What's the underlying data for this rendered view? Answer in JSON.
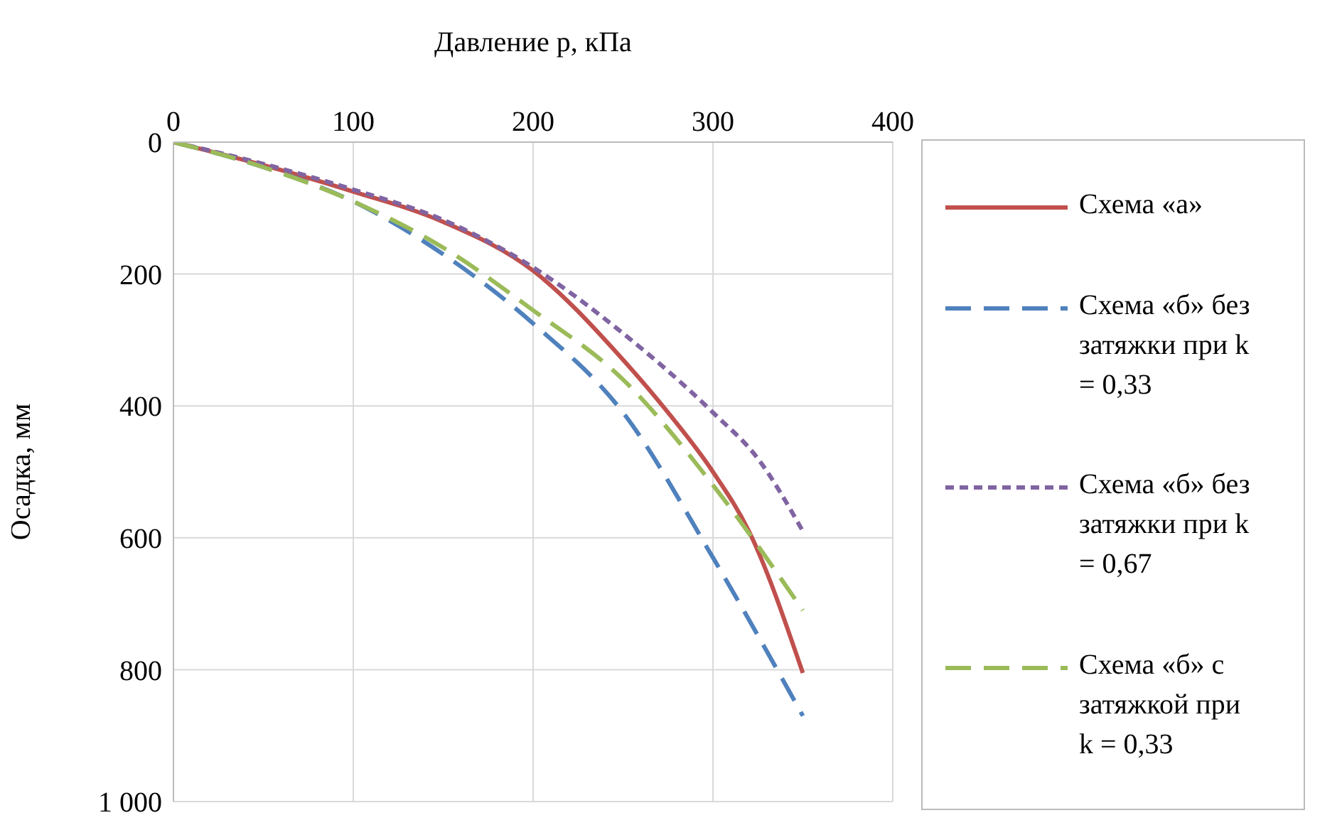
{
  "chart_data": {
    "type": "line",
    "xlabel": "Давление p, кПа",
    "ylabel": "Осадка, мм",
    "xlim": [
      0,
      400
    ],
    "xticks": [
      0,
      100,
      200,
      300,
      400
    ],
    "ylim": [
      1000,
      0
    ],
    "yticks": [
      0,
      200,
      400,
      600,
      800,
      {
        "value": 1000,
        "label": "1 000"
      }
    ],
    "grid": true,
    "legend": "right",
    "series": [
      {
        "name": "Схема «а»",
        "color": "#c0504d",
        "line_style": "solid",
        "x": [
          0,
          50,
          100,
          150,
          200,
          250,
          275,
          300,
          320,
          350
        ],
        "values": [
          0,
          35,
          75,
          121,
          195,
          330,
          410,
          500,
          590,
          805
        ]
      },
      {
        "name": "Схема «б» без затяжки при k = 0,33",
        "color": "#4f81bd",
        "line_style": "dashed",
        "x": [
          0,
          50,
          100,
          150,
          200,
          250,
          300,
          350
        ],
        "values": [
          0,
          38,
          90,
          170,
          275,
          410,
          630,
          870
        ]
      },
      {
        "name": "Схема «б» без затяжки при k = 0,67",
        "color": "#8064a2",
        "line_style": "dotted",
        "x": [
          0,
          50,
          100,
          150,
          200,
          250,
          300,
          325,
          350
        ],
        "values": [
          0,
          33,
          72,
          118,
          190,
          290,
          410,
          480,
          590
        ]
      },
      {
        "name": "Схема «б» с затяжкой при k = 0,33",
        "color": "#9bbb59",
        "line_style": "dashed",
        "x": [
          0,
          50,
          100,
          150,
          200,
          250,
          300,
          350
        ],
        "values": [
          0,
          38,
          90,
          160,
          255,
          360,
          520,
          710
        ]
      }
    ]
  }
}
